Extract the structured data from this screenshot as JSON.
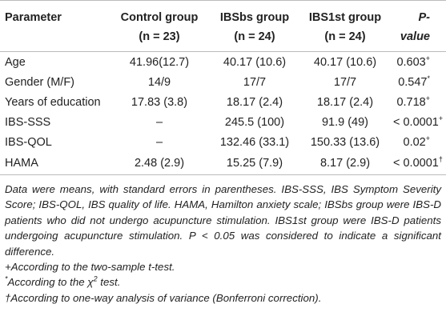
{
  "table": {
    "header": [
      [
        "Parameter"
      ],
      [
        "Control group",
        "(n = 23)"
      ],
      [
        "IBSbs group",
        "(n = 24)"
      ],
      [
        "IBS1st group",
        "(n = 24)"
      ],
      [
        "P-value"
      ]
    ],
    "rows": [
      [
        "Age",
        "41.96(12.7)",
        "40.17 (10.6)",
        "40.17 (10.6)",
        {
          "text": "0.603",
          "note": "+"
        }
      ],
      [
        "Gender (M/F)",
        "14/9",
        "17/7",
        "17/7",
        {
          "text": "0.547",
          "note": "*"
        }
      ],
      [
        "Years of education",
        "17.83 (3.8)",
        "18.17 (2.4)",
        "18.17 (2.4)",
        {
          "text": "0.718",
          "note": "+"
        }
      ],
      [
        "IBS-SSS",
        "–",
        "245.5 (100)",
        "91.9 (49)",
        {
          "text": "< 0.0001",
          "note": "+"
        }
      ],
      [
        "IBS-QOL",
        "–",
        "132.46 (33.1)",
        "150.33 (13.6)",
        {
          "text": "0.02",
          "note": "+"
        }
      ],
      [
        "HAMA",
        "2.48 (2.9)",
        "15.25 (7.9)",
        "8.17 (2.9)",
        {
          "text": "< 0.0001",
          "note": "†"
        }
      ]
    ]
  },
  "footnotes": [
    [
      "Data were means, with standard errors in parentheses. IBS-SSS, IBS Symptom Severity Score; IBS-QOL, IBS quality of life. HAMA, Hamilton anxiety scale; IBSbs group were IBS-D patients who did not undergo acupuncture stimulation. IBS1st group were IBS-D patients undergoing acupuncture stimulation. P < 0.05 was considered to indicate a significant difference."
    ],
    [
      "+According to the two-sample t-test."
    ],
    [
      {
        "sup": "*"
      },
      "According to the χ",
      {
        "sup": "2"
      },
      " test."
    ],
    [
      "†According to one-way analysis of variance (Bonferroni correction)."
    ]
  ]
}
